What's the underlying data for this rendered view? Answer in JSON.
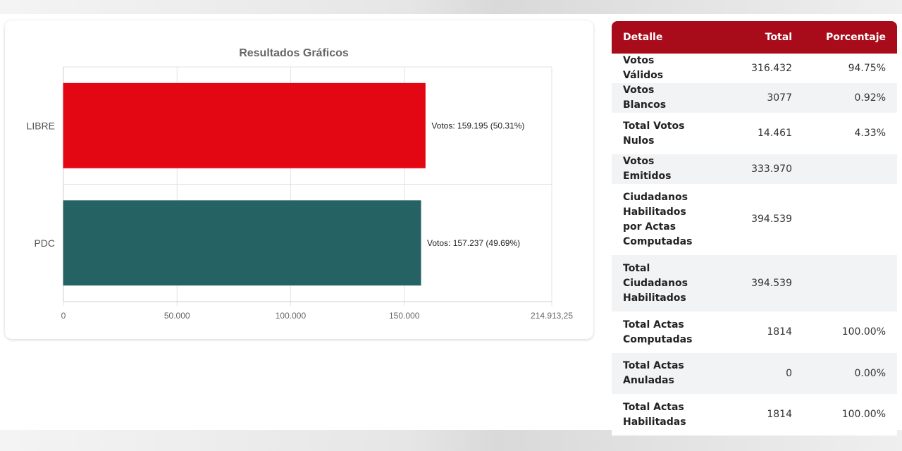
{
  "chart_data": {
    "type": "bar",
    "orientation": "horizontal",
    "title": "Resultados Gráficos",
    "categories": [
      "LIBRE",
      "PDC"
    ],
    "values": [
      159195,
      157237
    ],
    "bar_labels": [
      "Votos: 159.195 (50.31%)",
      "Votos: 157.237 (49.69%)"
    ],
    "colors": [
      "#e30613",
      "#256264"
    ],
    "xlim": [
      0,
      214913.25
    ],
    "xticks": [
      0,
      50000,
      100000,
      150000,
      214913.25
    ],
    "xtick_labels": [
      "0",
      "50.000",
      "100.000",
      "150.000",
      "214.913,25"
    ],
    "grid": true,
    "legend": "none"
  },
  "table": {
    "header_color": "#a80b1a",
    "headers": [
      "Detalle",
      "Total",
      "Porcentaje"
    ],
    "rows": [
      {
        "label": "Votos Válidos",
        "total": "316.432",
        "pct": "94.75%"
      },
      {
        "label": "Votos Blancos",
        "total": "3077",
        "pct": "0.92%"
      },
      {
        "label": "Total Votos Nulos",
        "total": "14.461",
        "pct": "4.33%"
      },
      {
        "label": "Votos Emitidos",
        "total": "333.970",
        "pct": ""
      },
      {
        "label": "Ciudadanos Habilitados por Actas Computadas",
        "total": "394.539",
        "pct": ""
      },
      {
        "label": "Total Ciudadanos Habilitados",
        "total": "394.539",
        "pct": ""
      },
      {
        "label": "Total Actas Computadas",
        "total": "1814",
        "pct": "100.00%"
      },
      {
        "label": "Total Actas Anuladas",
        "total": "0",
        "pct": "0.00%"
      },
      {
        "label": "Total Actas Habilitadas",
        "total": "1814",
        "pct": "100.00%"
      }
    ]
  }
}
